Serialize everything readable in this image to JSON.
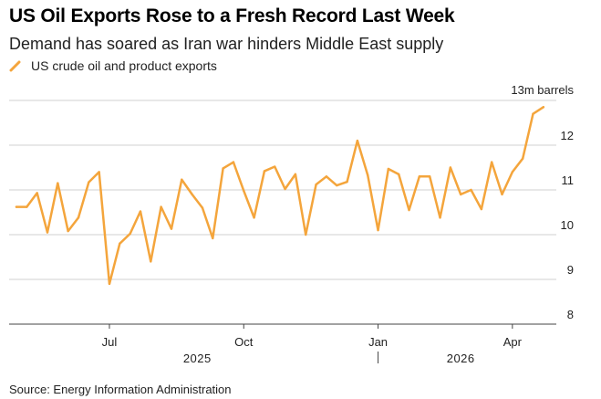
{
  "colors": {
    "line": "#f4a53c",
    "grid": "#d0d0d0",
    "axis": "#444444"
  },
  "header": {
    "title": "US Oil Exports Rose to a Fresh Record Last Week",
    "subtitle": "Demand has soared as Iran war hinders Middle East supply"
  },
  "footer": {
    "source": "Source: Energy Information Administration"
  },
  "chart_data": {
    "type": "line",
    "title": "US Oil Exports Rose to a Fresh Record Last Week",
    "subtitle": "Demand has soared as Iran war hinders Middle East supply",
    "unit_label": "13m barrels",
    "legend_position": "top-left",
    "grid": true,
    "ylim": [
      8,
      13
    ],
    "y_ticks": [
      8,
      9,
      10,
      11,
      12
    ],
    "x_ticks": [
      {
        "label": "Jul",
        "index": 9
      },
      {
        "label": "Oct",
        "index": 22
      },
      {
        "label": "Jan",
        "index": 35
      },
      {
        "label": "Apr",
        "index": 48
      }
    ],
    "year_labels": [
      {
        "label": "2025",
        "index": 17.5
      },
      {
        "label": "2026",
        "index": 43
      }
    ],
    "year_divider_index": 35,
    "series": [
      {
        "name": "US crude oil and product exports",
        "values": [
          10.62,
          10.62,
          10.93,
          10.05,
          11.15,
          10.08,
          10.38,
          11.17,
          11.4,
          8.9,
          9.8,
          10.02,
          10.52,
          9.4,
          10.62,
          10.13,
          11.23,
          10.9,
          10.6,
          9.92,
          11.48,
          11.62,
          10.98,
          10.38,
          11.42,
          11.52,
          11.02,
          11.35,
          10.0,
          11.12,
          11.3,
          11.1,
          11.18,
          12.1,
          11.33,
          10.1,
          11.47,
          11.35,
          10.55,
          11.3,
          11.3,
          10.38,
          11.5,
          10.9,
          11.0,
          10.57,
          11.62,
          10.9,
          11.4,
          11.7,
          12.7,
          12.85
        ]
      }
    ]
  }
}
